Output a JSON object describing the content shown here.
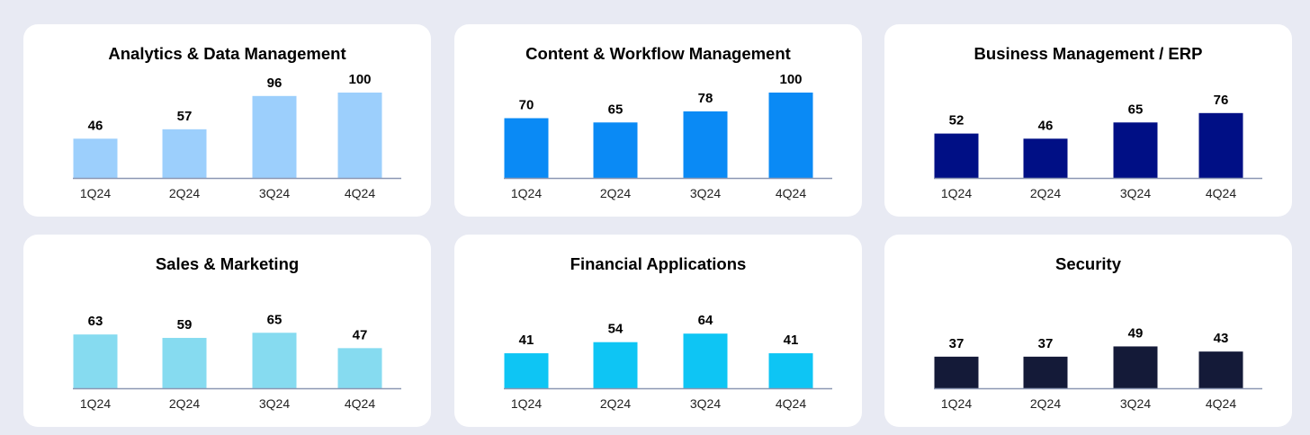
{
  "chart_data": [
    {
      "type": "bar",
      "title": "Analytics & Data Management",
      "categories": [
        "1Q24",
        "2Q24",
        "3Q24",
        "4Q24"
      ],
      "values": [
        46,
        57,
        96,
        100
      ],
      "color": "#9ccffc"
    },
    {
      "type": "bar",
      "title": "Content & Workflow Management",
      "categories": [
        "1Q24",
        "2Q24",
        "3Q24",
        "4Q24"
      ],
      "values": [
        70,
        65,
        78,
        100
      ],
      "color": "#0a8af5"
    },
    {
      "type": "bar",
      "title": "Business Management / ERP",
      "categories": [
        "1Q24",
        "2Q24",
        "3Q24",
        "4Q24"
      ],
      "values": [
        52,
        46,
        65,
        76
      ],
      "color": "#000f85"
    },
    {
      "type": "bar",
      "title": "Sales & Marketing",
      "categories": [
        "1Q24",
        "2Q24",
        "3Q24",
        "4Q24"
      ],
      "values": [
        63,
        59,
        65,
        47
      ],
      "color": "#86dbf0"
    },
    {
      "type": "bar",
      "title": "Financial Applications",
      "categories": [
        "1Q24",
        "2Q24",
        "3Q24",
        "4Q24"
      ],
      "values": [
        41,
        54,
        64,
        41
      ],
      "color": "#0ec5f4"
    },
    {
      "type": "bar",
      "title": "Security",
      "categories": [
        "1Q24",
        "2Q24",
        "3Q24",
        "4Q24"
      ],
      "values": [
        37,
        37,
        49,
        43
      ],
      "color": "#141a38"
    }
  ]
}
